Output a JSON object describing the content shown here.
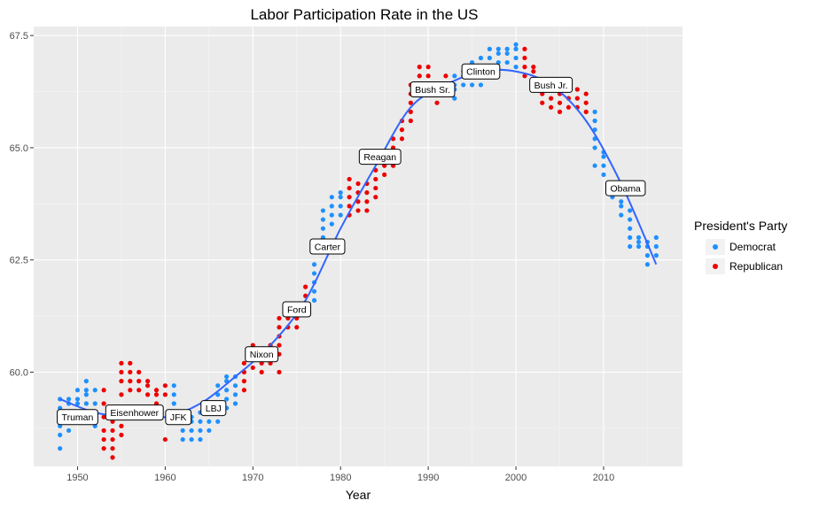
{
  "chart_data": {
    "type": "scatter",
    "title": "Labor Participation Rate in the US",
    "xlabel": "Year",
    "ylabel": "",
    "xlim": [
      1945,
      2019
    ],
    "ylim": [
      57.9,
      67.7
    ],
    "x_ticks": [
      1950,
      1960,
      1970,
      1980,
      1990,
      2000,
      2010
    ],
    "y_ticks": [
      60.0,
      62.5,
      65.0,
      67.5
    ],
    "y_tick_labels": [
      "60.0",
      "62.5",
      "65.0",
      "67.5"
    ],
    "grid": true,
    "legend": {
      "title": "President's Party",
      "position": "right",
      "entries": [
        {
          "name": "Democrat",
          "color": "#1e90ff"
        },
        {
          "name": "Republican",
          "color": "#ee0000"
        }
      ]
    },
    "smooth_color": "#3366ff",
    "series": [
      {
        "name": "Democrat",
        "color": "#1e90ff",
        "years": [
          {
            "year": 1948,
            "values": [
              58.3,
              58.6,
              58.8,
              59.0,
              59.2,
              59.4
            ]
          },
          {
            "year": 1949,
            "values": [
              58.7,
              58.9,
              59.1,
              59.3,
              59.4
            ]
          },
          {
            "year": 1950,
            "values": [
              58.9,
              59.1,
              59.3,
              59.4,
              59.6
            ]
          },
          {
            "year": 1951,
            "values": [
              59.1,
              59.3,
              59.5,
              59.6,
              59.8
            ]
          },
          {
            "year": 1952,
            "values": [
              58.8,
              59.0,
              59.3,
              59.6
            ]
          },
          {
            "year": 1961,
            "values": [
              59.1,
              59.3,
              59.5,
              59.7
            ]
          },
          {
            "year": 1962,
            "values": [
              58.5,
              58.7,
              58.9,
              59.1
            ]
          },
          {
            "year": 1963,
            "values": [
              58.5,
              58.7,
              58.9,
              59.0
            ]
          },
          {
            "year": 1964,
            "values": [
              58.5,
              58.7,
              58.9,
              59.1
            ]
          },
          {
            "year": 1965,
            "values": [
              58.7,
              58.9,
              59.1,
              59.3
            ]
          },
          {
            "year": 1966,
            "values": [
              58.9,
              59.1,
              59.3,
              59.5,
              59.7
            ]
          },
          {
            "year": 1967,
            "values": [
              59.2,
              59.4,
              59.6,
              59.8,
              59.9
            ]
          },
          {
            "year": 1968,
            "values": [
              59.3,
              59.5,
              59.7,
              59.9
            ]
          },
          {
            "year": 1977,
            "values": [
              61.6,
              61.8,
              62.0,
              62.2,
              62.4
            ]
          },
          {
            "year": 1978,
            "values": [
              62.8,
              63.0,
              63.2,
              63.4,
              63.6
            ]
          },
          {
            "year": 1979,
            "values": [
              63.3,
              63.5,
              63.7,
              63.9
            ]
          },
          {
            "year": 1980,
            "values": [
              63.5,
              63.7,
              63.9,
              64.0
            ]
          },
          {
            "year": 1993,
            "values": [
              66.1,
              66.3,
              66.4,
              66.6
            ]
          },
          {
            "year": 1994,
            "values": [
              66.4,
              66.6,
              66.7
            ]
          },
          {
            "year": 1995,
            "values": [
              66.4,
              66.6,
              66.8,
              66.9
            ]
          },
          {
            "year": 1996,
            "values": [
              66.4,
              66.6,
              66.8,
              67.0
            ]
          },
          {
            "year": 1997,
            "values": [
              66.8,
              67.0,
              67.2
            ]
          },
          {
            "year": 1998,
            "values": [
              66.9,
              67.1,
              67.2
            ]
          },
          {
            "year": 1999,
            "values": [
              66.9,
              67.1,
              67.2
            ]
          },
          {
            "year": 2000,
            "values": [
              66.8,
              67.0,
              67.2,
              67.3
            ]
          },
          {
            "year": 2009,
            "values": [
              64.6,
              65.0,
              65.2,
              65.4,
              65.6,
              65.8
            ]
          },
          {
            "year": 2010,
            "values": [
              64.4,
              64.6,
              64.8,
              64.9
            ]
          },
          {
            "year": 2011,
            "values": [
              63.9,
              64.0,
              64.2
            ]
          },
          {
            "year": 2012,
            "values": [
              63.5,
              63.7,
              63.8
            ]
          },
          {
            "year": 2013,
            "values": [
              62.8,
              63.0,
              63.2,
              63.4,
              63.6
            ]
          },
          {
            "year": 2014,
            "values": [
              62.8,
              62.9,
              63.0
            ]
          },
          {
            "year": 2015,
            "values": [
              62.4,
              62.6,
              62.8,
              62.9
            ]
          },
          {
            "year": 2016,
            "values": [
              62.6,
              62.8,
              63.0
            ]
          }
        ]
      },
      {
        "name": "Republican",
        "color": "#ee0000",
        "years": [
          {
            "year": 1953,
            "values": [
              58.3,
              58.5,
              58.7,
              59.0,
              59.3,
              59.6
            ]
          },
          {
            "year": 1954,
            "values": [
              58.1,
              58.3,
              58.5,
              58.7,
              58.9,
              59.1
            ]
          },
          {
            "year": 1955,
            "values": [
              58.6,
              58.8,
              59.5,
              59.8,
              60.0,
              60.2
            ]
          },
          {
            "year": 1956,
            "values": [
              59.6,
              59.8,
              60.0,
              60.2
            ]
          },
          {
            "year": 1957,
            "values": [
              59.6,
              59.8,
              60.0
            ]
          },
          {
            "year": 1958,
            "values": [
              59.5,
              59.7,
              59.8
            ]
          },
          {
            "year": 1959,
            "values": [
              59.3,
              59.5,
              59.6
            ]
          },
          {
            "year": 1960,
            "values": [
              58.5,
              59.5,
              59.7
            ]
          },
          {
            "year": 1969,
            "values": [
              59.6,
              59.8,
              60.0,
              60.2
            ]
          },
          {
            "year": 1970,
            "values": [
              60.1,
              60.3,
              60.5,
              60.6
            ]
          },
          {
            "year": 1971,
            "values": [
              60.0,
              60.2,
              60.4
            ]
          },
          {
            "year": 1972,
            "values": [
              60.2,
              60.4,
              60.6
            ]
          },
          {
            "year": 1973,
            "values": [
              60.0,
              60.4,
              60.6,
              60.8,
              61.0,
              61.2
            ]
          },
          {
            "year": 1974,
            "values": [
              61.0,
              61.2,
              61.3
            ]
          },
          {
            "year": 1975,
            "values": [
              61.0,
              61.2
            ]
          },
          {
            "year": 1976,
            "values": [
              61.5,
              61.7,
              61.9
            ]
          },
          {
            "year": 1981,
            "values": [
              63.5,
              63.7,
              63.9,
              64.1,
              64.3
            ]
          },
          {
            "year": 1982,
            "values": [
              63.6,
              63.8,
              64.0,
              64.2
            ]
          },
          {
            "year": 1983,
            "values": [
              63.6,
              63.8,
              64.0,
              64.2
            ]
          },
          {
            "year": 1984,
            "values": [
              63.9,
              64.1,
              64.3,
              64.5
            ]
          },
          {
            "year": 1985,
            "values": [
              64.4,
              64.6,
              64.8
            ]
          },
          {
            "year": 1986,
            "values": [
              64.6,
              64.8,
              65.0,
              65.2
            ]
          },
          {
            "year": 1987,
            "values": [
              65.2,
              65.4,
              65.6
            ]
          },
          {
            "year": 1988,
            "values": [
              65.6,
              65.8,
              66.0,
              66.2,
              66.4
            ]
          },
          {
            "year": 1989,
            "values": [
              66.2,
              66.4,
              66.6,
              66.8
            ]
          },
          {
            "year": 1990,
            "values": [
              66.2,
              66.4,
              66.6,
              66.8
            ]
          },
          {
            "year": 1991,
            "values": [
              66.0,
              66.2,
              66.4
            ]
          },
          {
            "year": 1992,
            "values": [
              66.2,
              66.4,
              66.6
            ]
          },
          {
            "year": 2001,
            "values": [
              66.6,
              66.8,
              67.0,
              67.2
            ]
          },
          {
            "year": 2002,
            "values": [
              66.5,
              66.7,
              66.8
            ]
          },
          {
            "year": 2003,
            "values": [
              66.0,
              66.2,
              66.4
            ]
          },
          {
            "year": 2004,
            "values": [
              65.9,
              66.1,
              66.3
            ]
          },
          {
            "year": 2005,
            "values": [
              65.8,
              66.0,
              66.2,
              66.3
            ]
          },
          {
            "year": 2006,
            "values": [
              65.9,
              66.1,
              66.3
            ]
          },
          {
            "year": 2007,
            "values": [
              65.9,
              66.1,
              66.3
            ]
          },
          {
            "year": 2008,
            "values": [
              65.8,
              66.0,
              66.2
            ]
          }
        ]
      }
    ],
    "smooth": {
      "x": [
        1948,
        1952,
        1956,
        1960,
        1964,
        1968,
        1972,
        1976,
        1980,
        1984,
        1988,
        1992,
        1996,
        2000,
        2004,
        2008,
        2012,
        2016
      ],
      "y": [
        59.4,
        59.1,
        59.0,
        59.0,
        59.3,
        59.9,
        60.6,
        61.6,
        63.2,
        64.6,
        65.9,
        66.4,
        66.7,
        66.7,
        66.4,
        65.6,
        64.2,
        62.4
      ]
    },
    "annotations": [
      {
        "label": "Truman",
        "x": 1950.0,
        "y": 59.0
      },
      {
        "label": "Eisenhower",
        "x": 1956.5,
        "y": 59.1
      },
      {
        "label": "JFK",
        "x": 1961.5,
        "y": 59.0
      },
      {
        "label": "LBJ",
        "x": 1965.5,
        "y": 59.2
      },
      {
        "label": "Nixon",
        "x": 1971.0,
        "y": 60.4
      },
      {
        "label": "Ford",
        "x": 1975.0,
        "y": 61.4
      },
      {
        "label": "Carter",
        "x": 1978.5,
        "y": 62.8
      },
      {
        "label": "Reagan",
        "x": 1984.5,
        "y": 64.8
      },
      {
        "label": "Bush Sr.",
        "x": 1990.5,
        "y": 66.3
      },
      {
        "label": "Clinton",
        "x": 1996.0,
        "y": 66.7
      },
      {
        "label": "Bush Jr.",
        "x": 2004.0,
        "y": 66.4
      },
      {
        "label": "Obama",
        "x": 2012.5,
        "y": 64.1
      }
    ]
  }
}
